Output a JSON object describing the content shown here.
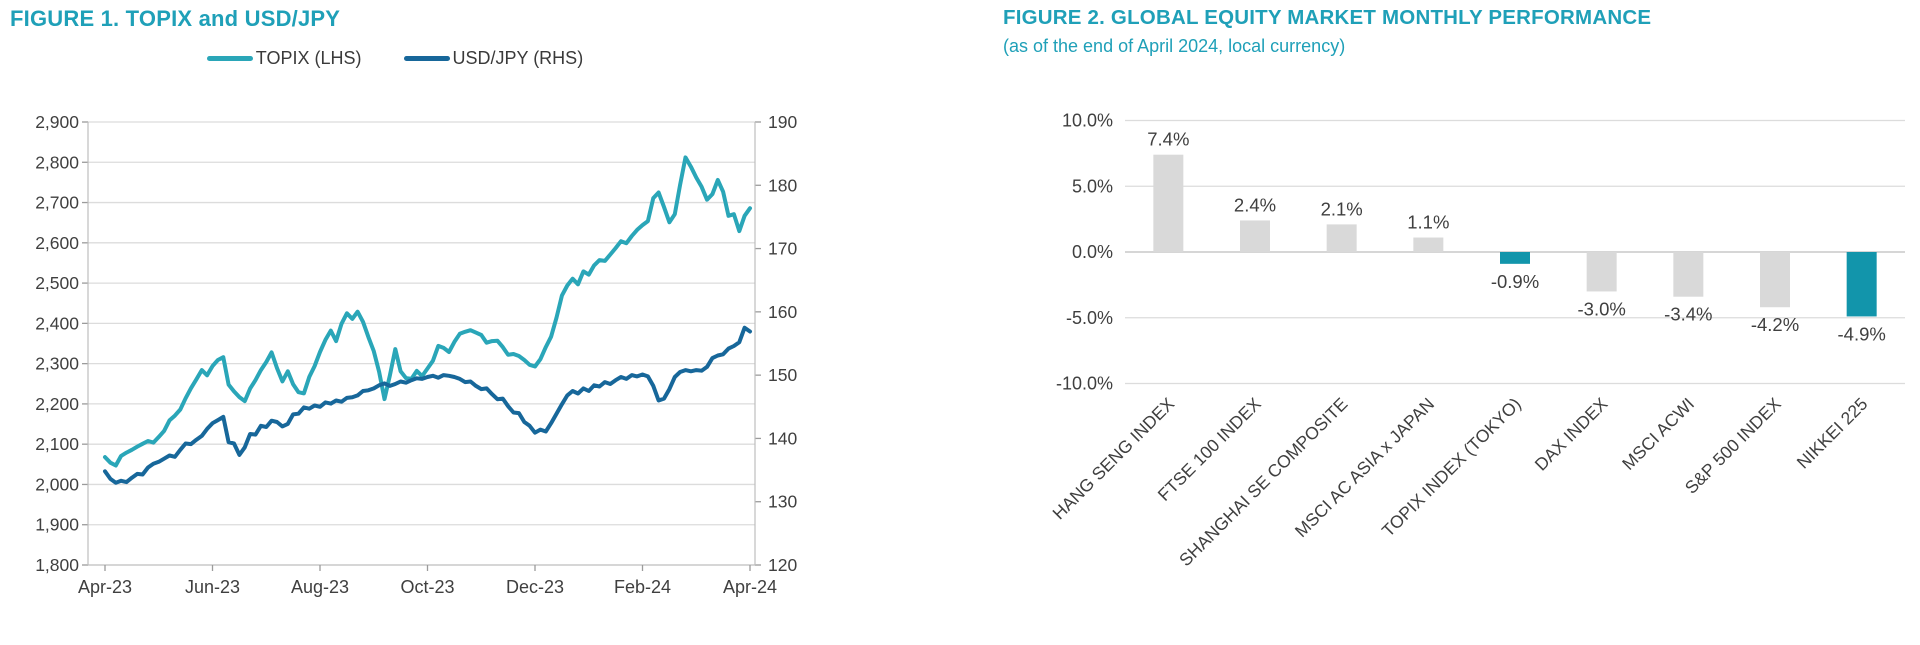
{
  "colors": {
    "title_teal": "#1fa0b8",
    "topix_line": "#2aa6b8",
    "usdjpy_line": "#17679a",
    "bar_gray": "#d9d9d9",
    "bar_teal": "#1295ab",
    "grid": "#dcdcdc",
    "axis": "#bdbdbd",
    "tick": "#9b9b9b",
    "text": "#3f3f3f"
  },
  "figure1": {
    "title": "FIGURE 1. TOPIX and USD/JPY",
    "legend": [
      {
        "label": "TOPIX (LHS)",
        "color": "#2aa6b8"
      },
      {
        "label": "USD/JPY (RHS)",
        "color": "#17679a"
      }
    ]
  },
  "figure2": {
    "title": "FIGURE 2. GLOBAL EQUITY MARKET MONTHLY PERFORMANCE",
    "subtitle": "(as of the end of April 2024, local currency)"
  },
  "chart_data": [
    {
      "type": "line",
      "title": "FIGURE 1. TOPIX and USD/JPY",
      "x_tick_labels": [
        "Apr-23",
        "Jun-23",
        "Aug-23",
        "Oct-23",
        "Dec-23",
        "Feb-24",
        "Apr-24"
      ],
      "grid": true,
      "legend_position": "top",
      "left_axis": {
        "name": "TOPIX (LHS)",
        "min": 1800,
        "max": 2900,
        "tick_step": 100,
        "tick_labels": [
          "2,900",
          "2,800",
          "2,700",
          "2,600",
          "2,500",
          "2,400",
          "2,300",
          "2,200",
          "2,100",
          "2,000",
          "1,900",
          "1,800"
        ]
      },
      "right_axis": {
        "name": "USD/JPY (RHS)",
        "min": 120,
        "max": 190,
        "tick_step": 10,
        "tick_labels": [
          "190",
          "180",
          "170",
          "160",
          "150",
          "140",
          "130",
          "120"
        ]
      },
      "series": [
        {
          "name": "TOPIX (LHS)",
          "axis": "left",
          "color": "#2aa6b8",
          "values": [
            2068,
            2054,
            2047,
            2071,
            2079,
            2086,
            2094,
            2101,
            2108,
            2104,
            2118,
            2133,
            2159,
            2171,
            2186,
            2214,
            2239,
            2261,
            2284,
            2271,
            2294,
            2309,
            2316,
            2248,
            2231,
            2217,
            2207,
            2238,
            2259,
            2284,
            2304,
            2328,
            2289,
            2256,
            2281,
            2249,
            2229,
            2226,
            2267,
            2294,
            2329,
            2359,
            2382,
            2356,
            2399,
            2425,
            2411,
            2429,
            2404,
            2366,
            2331,
            2280,
            2212,
            2271,
            2336,
            2281,
            2264,
            2262,
            2282,
            2269,
            2288,
            2307,
            2344,
            2339,
            2329,
            2354,
            2374,
            2379,
            2383,
            2377,
            2371,
            2352,
            2356,
            2357,
            2341,
            2322,
            2324,
            2319,
            2309,
            2297,
            2293,
            2311,
            2341,
            2367,
            2414,
            2469,
            2494,
            2511,
            2497,
            2529,
            2521,
            2544,
            2557,
            2555,
            2571,
            2587,
            2604,
            2599,
            2617,
            2632,
            2644,
            2654,
            2711,
            2725,
            2689,
            2651,
            2671,
            2744,
            2812,
            2789,
            2762,
            2739,
            2707,
            2721,
            2756,
            2727,
            2667,
            2671,
            2629,
            2667,
            2686
          ]
        },
        {
          "name": "USD/JPY (RHS)",
          "axis": "right",
          "color": "#17679a",
          "values": [
            134.8,
            133.6,
            133.0,
            133.3,
            133.1,
            133.8,
            134.4,
            134.3,
            135.4,
            136.0,
            136.3,
            136.8,
            137.3,
            137.1,
            138.2,
            139.2,
            139.1,
            139.8,
            140.4,
            141.5,
            142.4,
            142.9,
            143.4,
            139.4,
            139.2,
            137.4,
            138.6,
            140.7,
            140.6,
            142.0,
            141.8,
            142.8,
            142.6,
            141.9,
            142.3,
            143.8,
            143.9,
            144.9,
            144.7,
            145.2,
            145.0,
            145.7,
            145.5,
            146.0,
            145.8,
            146.4,
            146.5,
            146.8,
            147.5,
            147.6,
            147.9,
            148.4,
            148.7,
            148.3,
            148.6,
            149.0,
            148.8,
            149.2,
            149.5,
            149.4,
            149.7,
            149.9,
            149.6,
            150.0,
            149.9,
            149.7,
            149.4,
            148.9,
            149.0,
            148.3,
            147.8,
            147.9,
            147.0,
            146.2,
            146.3,
            145.1,
            144.1,
            144.0,
            142.6,
            142.0,
            140.9,
            141.4,
            141.1,
            142.4,
            143.9,
            145.4,
            146.8,
            147.5,
            147.1,
            147.9,
            147.5,
            148.4,
            148.2,
            148.9,
            148.6,
            149.2,
            149.7,
            149.4,
            150.0,
            149.8,
            150.1,
            149.8,
            148.3,
            146.0,
            146.3,
            147.8,
            149.7,
            150.5,
            150.8,
            150.6,
            150.8,
            150.7,
            151.3,
            152.7,
            153.1,
            153.3,
            154.2,
            154.6,
            155.2,
            157.5,
            156.9
          ]
        }
      ]
    },
    {
      "type": "bar",
      "title": "FIGURE 2. GLOBAL EQUITY MARKET MONTHLY PERFORMANCE",
      "subtitle": "(as of the end of April 2024, local currency)",
      "categories": [
        "HANG SENG INDEX",
        "FTSE 100 INDEX",
        "SHANGHAI SE COMPOSITE",
        "MSCI AC ASIA x JAPAN",
        "TOPIX INDEX (TOKYO)",
        "DAX INDEX",
        "MSCI ACWI",
        "S&P 500 INDEX",
        "NIKKEI 225"
      ],
      "values": [
        7.4,
        2.4,
        2.1,
        1.1,
        -0.9,
        -3.0,
        -3.4,
        -4.2,
        -4.9
      ],
      "value_labels": [
        "7.4%",
        "2.4%",
        "2.1%",
        "1.1%",
        "-0.9%",
        "-3.0%",
        "-3.4%",
        "-4.2%",
        "-4.9%"
      ],
      "bar_colors": [
        "#d9d9d9",
        "#d9d9d9",
        "#d9d9d9",
        "#d9d9d9",
        "#1295ab",
        "#d9d9d9",
        "#d9d9d9",
        "#d9d9d9",
        "#1295ab"
      ],
      "ylabel_tick_labels": [
        "10.0%",
        "5.0%",
        "0.0%",
        "-5.0%",
        "-10.0%"
      ],
      "ylabel_tick_values": [
        10,
        5,
        0,
        -5,
        -10
      ],
      "ylim": [
        -10,
        10
      ],
      "grid": true,
      "legend_position": "none"
    }
  ]
}
